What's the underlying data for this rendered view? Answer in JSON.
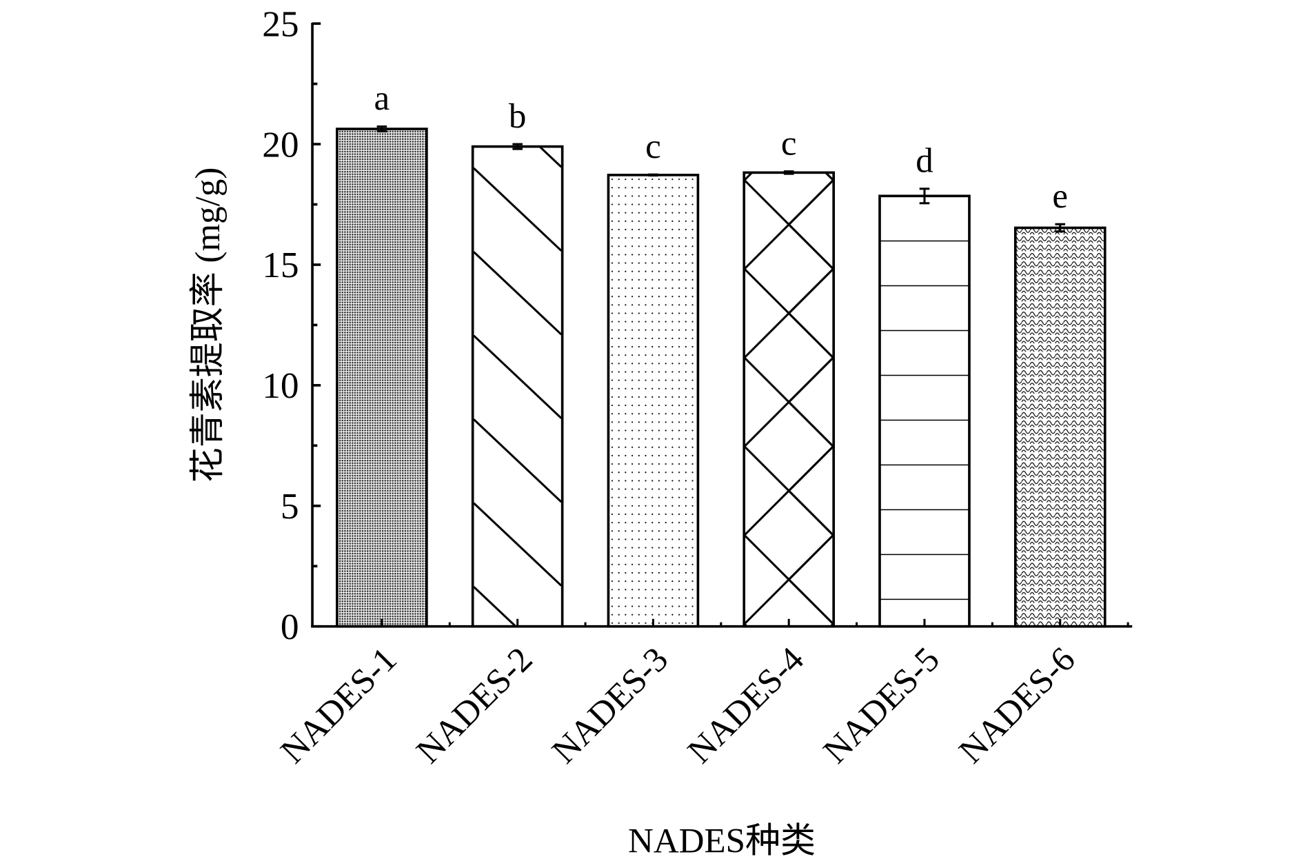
{
  "chart_data": {
    "type": "bar",
    "title": "",
    "xlabel": "NADES种类",
    "ylabel": "花青素提取率 (mg/g)",
    "ylim": [
      0,
      25
    ],
    "yticks": [
      "0",
      "5",
      "10",
      "15",
      "20",
      "25"
    ],
    "categories": [
      "NADES-1",
      "NADES-2",
      "NADES-3",
      "NADES-4",
      "NADES-5",
      "NADES-6"
    ],
    "values": [
      20.63,
      19.9,
      18.72,
      18.82,
      17.85,
      16.53
    ],
    "errors": [
      0.1,
      0.1,
      0.02,
      0.05,
      0.3,
      0.15
    ],
    "significance_labels": [
      "a",
      "b",
      "c",
      "c",
      "d",
      "e"
    ],
    "patterns": [
      "dense-dots",
      "diagonal",
      "sparse-dots",
      "crosshatch",
      "horizontal",
      "waves"
    ],
    "grid": false,
    "colors": {
      "stroke": "#000000",
      "fill": "#ffffff"
    }
  }
}
